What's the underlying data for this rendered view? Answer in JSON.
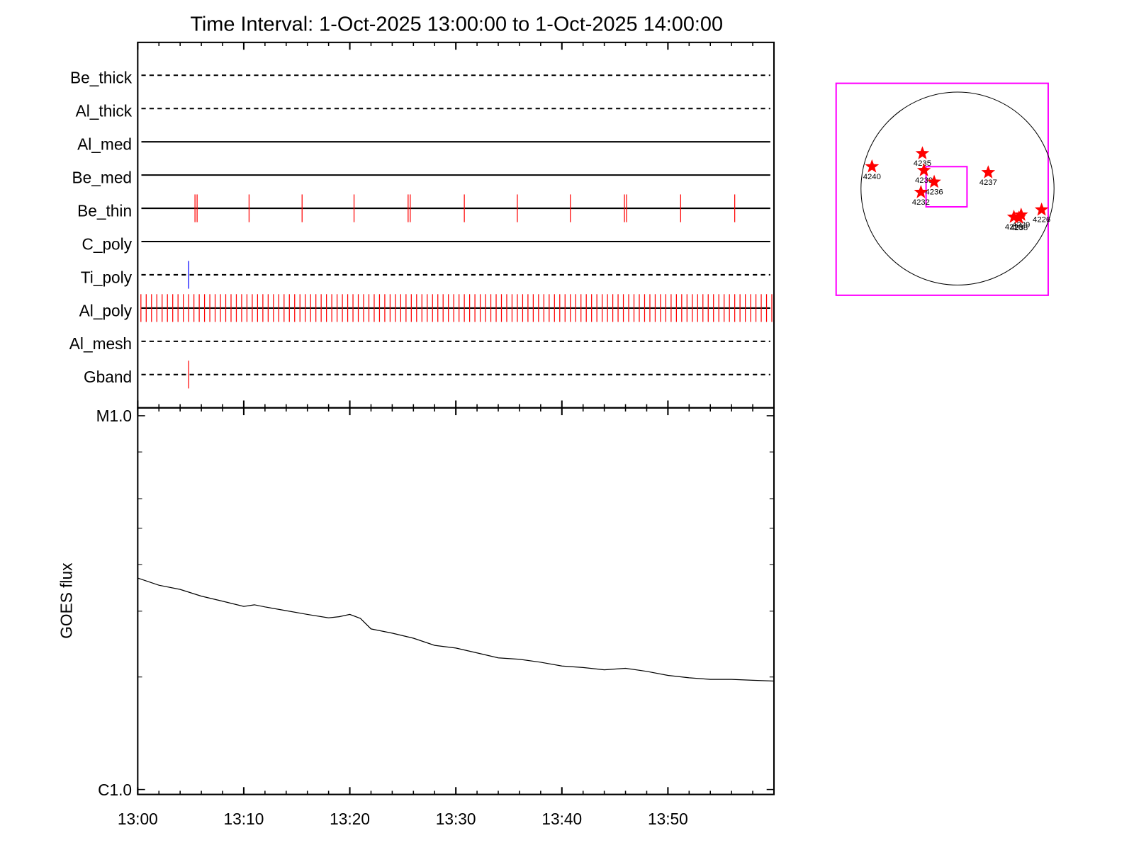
{
  "chart_data": [
    {
      "type": "timeline",
      "title": "Time Interval:  1-Oct-2025 13:00:00 to  1-Oct-2025 14:00:00",
      "xlim": [
        0,
        60
      ],
      "rows": [
        {
          "name": "Be_thick",
          "style": "dashed",
          "color": "#ff0000",
          "events": []
        },
        {
          "name": "Al_thick",
          "style": "dashed",
          "color": "#ff0000",
          "events": []
        },
        {
          "name": "Al_med",
          "style": "solid",
          "color": "#ff0000",
          "events": []
        },
        {
          "name": "Be_med",
          "style": "solid",
          "color": "#ff0000",
          "events": []
        },
        {
          "name": "Be_thin",
          "style": "solid",
          "color": "#ff0000",
          "events": [
            5.4,
            5.6,
            10.5,
            15.5,
            20.4,
            25.5,
            25.7,
            30.8,
            35.8,
            40.8,
            45.9,
            46.1,
            51.2,
            56.3
          ]
        },
        {
          "name": "C_poly",
          "style": "solid",
          "color": "#ff0000",
          "events": []
        },
        {
          "name": "Ti_poly",
          "style": "dashed",
          "color": "#0000ff",
          "events": [
            4.8
          ]
        },
        {
          "name": "Al_poly",
          "style": "solid",
          "color": "#ff0000",
          "events": [
            0.3,
            0.8,
            1.3,
            1.8,
            2.3,
            2.8,
            3.3,
            3.8,
            4.3,
            4.8,
            5.3,
            5.8,
            6.3,
            6.8,
            7.3,
            7.8,
            8.3,
            8.8,
            9.3,
            9.8,
            10.3,
            10.8,
            11.3,
            11.8,
            12.3,
            12.8,
            13.3,
            13.8,
            14.3,
            14.8,
            15.3,
            15.8,
            16.3,
            16.8,
            17.3,
            17.8,
            18.3,
            18.8,
            19.3,
            19.8,
            20.3,
            20.8,
            21.3,
            21.8,
            22.3,
            22.8,
            23.3,
            23.8,
            24.3,
            24.8,
            25.3,
            25.8,
            26.3,
            26.8,
            27.3,
            27.8,
            28.3,
            28.8,
            29.3,
            29.8,
            30.3,
            30.8,
            31.3,
            31.8,
            32.3,
            32.8,
            33.3,
            33.8,
            34.3,
            34.8,
            35.3,
            35.8,
            36.3,
            36.8,
            37.3,
            37.8,
            38.3,
            38.8,
            39.3,
            39.8,
            40.3,
            40.8,
            41.3,
            41.8,
            42.3,
            42.8,
            43.3,
            43.8,
            44.3,
            44.8,
            45.3,
            45.8,
            46.3,
            46.8,
            47.3,
            47.8,
            48.3,
            48.8,
            49.3,
            49.8,
            50.3,
            50.8,
            51.3,
            51.8,
            52.3,
            52.8,
            53.3,
            53.8,
            54.3,
            54.8,
            55.3,
            55.8,
            56.3,
            56.8,
            57.3,
            57.8,
            58.3,
            58.8,
            59.3,
            59.8
          ]
        },
        {
          "name": "Al_mesh",
          "style": "dashed",
          "color": "#ff0000",
          "events": []
        },
        {
          "name": "Gband",
          "style": "dashed",
          "color": "#ff0000",
          "events": [
            4.8
          ]
        }
      ]
    },
    {
      "type": "line",
      "ylabel": "GOES flux",
      "ylog": true,
      "color": "#000000",
      "xlim": [
        0,
        60
      ],
      "xticks": [
        {
          "value": 0,
          "label": "13:00"
        },
        {
          "value": 10,
          "label": "13:10"
        },
        {
          "value": 20,
          "label": "13:20"
        },
        {
          "value": 30,
          "label": "13:30"
        },
        {
          "value": 40,
          "label": "13:40"
        },
        {
          "value": 50,
          "label": "13:50"
        }
      ],
      "xminor_ticks": [
        2,
        4,
        6,
        8,
        12,
        14,
        16,
        18,
        22,
        24,
        26,
        28,
        32,
        34,
        36,
        38,
        42,
        44,
        46,
        48,
        52,
        54,
        56,
        58
      ],
      "ylim": [
        9.7e-07,
        1.05e-05
      ],
      "yticks": [
        {
          "value": 1e-06,
          "label": "C1.0"
        },
        {
          "value": 1e-05,
          "label": "M1.0"
        }
      ],
      "yminor_ticks": [
        2e-06,
        3e-06,
        4e-06,
        5e-06,
        6e-06,
        8e-06
      ],
      "x": [
        0,
        2,
        4,
        6,
        8,
        10,
        11,
        12,
        14,
        16,
        18,
        19,
        20,
        21,
        22,
        24,
        26,
        28,
        30,
        32,
        34,
        36,
        38,
        40,
        42,
        44,
        46,
        48,
        50,
        52,
        54,
        56,
        58,
        60
      ],
      "values": [
        3.68e-06,
        3.52e-06,
        3.43e-06,
        3.29e-06,
        3.19e-06,
        3.09e-06,
        3.12e-06,
        3.08e-06,
        3.01e-06,
        2.94e-06,
        2.88e-06,
        2.9e-06,
        2.94e-06,
        2.87e-06,
        2.69e-06,
        2.62e-06,
        2.54e-06,
        2.43e-06,
        2.39e-06,
        2.32e-06,
        2.25e-06,
        2.23e-06,
        2.19e-06,
        2.14e-06,
        2.12e-06,
        2.09e-06,
        2.11e-06,
        2.07e-06,
        2.02e-06,
        1.99e-06,
        1.97e-06,
        1.97e-06,
        1.96e-06,
        1.95e-06
      ]
    },
    {
      "type": "sunmap",
      "color": "#ff0000",
      "points": [
        {
          "label": "4240",
          "x": -0.886,
          "y": 0.227
        },
        {
          "label": "4235",
          "x": -0.364,
          "y": 0.364
        },
        {
          "label": "4239",
          "x": -0.348,
          "y": 0.189
        },
        {
          "label": "4236",
          "x": -0.242,
          "y": 0.068
        },
        {
          "label": "4232",
          "x": -0.379,
          "y": -0.038
        },
        {
          "label": "4237",
          "x": 0.318,
          "y": 0.167
        },
        {
          "label": "4228",
          "x": 0.584,
          "y": -0.295
        },
        {
          "label": "4229",
          "x": 0.659,
          "y": -0.273
        },
        {
          "label": "4238",
          "x": 0.636,
          "y": -0.303
        },
        {
          "label": "4226",
          "x": 0.871,
          "y": -0.22
        }
      ]
    }
  ]
}
